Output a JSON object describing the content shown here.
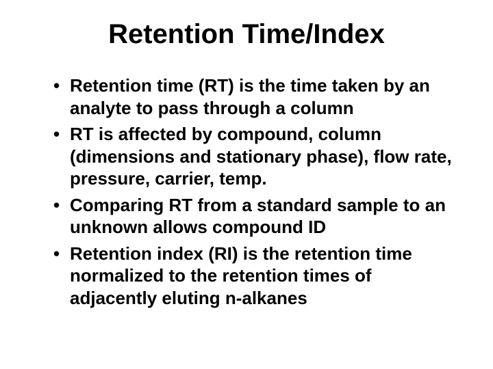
{
  "slide": {
    "title": "Retention Time/Index",
    "title_fontsize": 40,
    "title_color": "#000000",
    "bullets": [
      "Retention time (RT) is the time taken by an analyte to pass through a column",
      "RT is affected by compound, column (dimensions and stationary phase), flow rate, pressure, carrier, temp.",
      "Comparing RT from a standard sample to an unknown allows compound ID",
      "Retention index (RI) is the retention time normalized to the retention times of adjacently eluting n-alkanes"
    ],
    "bullet_fontsize": 26,
    "bullet_color": "#000000",
    "background_color": "#ffffff"
  }
}
